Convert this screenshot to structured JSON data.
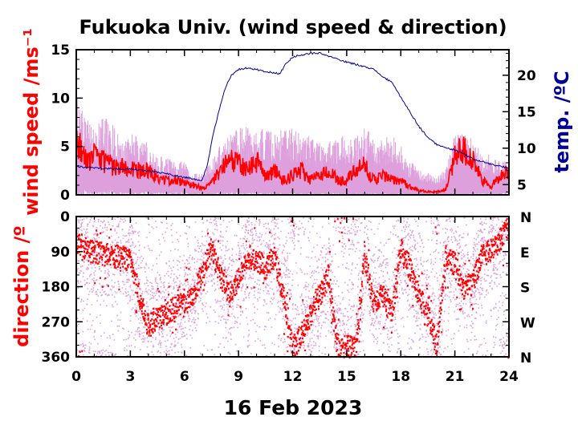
{
  "chart_data": [
    {
      "type": "line",
      "title": "Fukuoka Univ. (wind speed & direction)",
      "xlabel": "",
      "xlim": [
        0,
        24
      ],
      "xticks": [
        0,
        3,
        6,
        9,
        12,
        15,
        18,
        21,
        24
      ],
      "ylabel": "wind speed /ms⁻¹",
      "ylim": [
        0,
        15
      ],
      "yticks": [
        0,
        5,
        10,
        15
      ],
      "y2label": "temp. /ºC",
      "y2lim": [
        3.6,
        23.5
      ],
      "y2ticks": [
        5,
        10,
        15,
        20
      ],
      "series": [
        {
          "role": "wind-speed-max",
          "color": "#dda0dd",
          "x": [
            0,
            0.5,
            1,
            1.5,
            2,
            2.5,
            3,
            3.5,
            4,
            4.5,
            5,
            5.5,
            6,
            6.5,
            7,
            7.5,
            8,
            8.5,
            9,
            9.5,
            10,
            10.5,
            11,
            11.5,
            12,
            12.5,
            13,
            13.5,
            14,
            14.5,
            15,
            15.5,
            16,
            16.5,
            17,
            17.5,
            18,
            18.5,
            19,
            19.5,
            20,
            20.5,
            21,
            21.5,
            22,
            22.5,
            23,
            23.5,
            24
          ],
          "y": [
            9,
            7,
            6,
            7,
            6.5,
            5,
            6,
            5,
            5,
            3.5,
            3.5,
            3,
            3,
            2,
            2,
            3,
            4.5,
            5.5,
            6,
            6.5,
            6,
            6,
            5.5,
            6,
            6,
            5.5,
            5.5,
            5,
            5,
            5,
            6,
            5.5,
            6,
            5.5,
            5,
            5.5,
            4.5,
            3,
            2.5,
            2,
            1.5,
            2.5,
            5.5,
            5.5,
            5,
            4,
            3.5,
            3,
            3
          ]
        },
        {
          "role": "wind-speed-min",
          "color": "#dda0dd",
          "x": [
            0,
            0.5,
            1,
            1.5,
            2,
            2.5,
            3,
            3.5,
            4,
            4.5,
            5,
            5.5,
            6,
            6.5,
            7,
            7.5,
            8,
            8.5,
            9,
            9.5,
            10,
            10.5,
            11,
            11.5,
            12,
            12.5,
            13,
            13.5,
            14,
            14.5,
            15,
            15.5,
            16,
            16.5,
            17,
            17.5,
            18,
            18.5,
            19,
            19.5,
            20,
            20.5,
            21,
            21.5,
            22,
            22.5,
            23,
            23.5,
            24
          ],
          "y": [
            0.5,
            0.5,
            0.3,
            0.5,
            0.5,
            0.3,
            0.3,
            0.3,
            0.3,
            0.3,
            0.3,
            0.3,
            0.3,
            0.2,
            0.2,
            0.2,
            0.3,
            0.3,
            0.3,
            0.3,
            0.3,
            0.2,
            0.2,
            0.2,
            0.2,
            0.2,
            0.2,
            0.2,
            0.2,
            0.2,
            0.2,
            0.2,
            0.2,
            0.2,
            0.2,
            0.2,
            0.2,
            0.1,
            0.1,
            0.1,
            0.1,
            0.1,
            0.2,
            0.2,
            0.2,
            0.2,
            0.2,
            0.2,
            0.3
          ]
        },
        {
          "role": "wind-speed-mean",
          "color": "#ff0000",
          "x": [
            0,
            0.3,
            0.6,
            1,
            1.5,
            2,
            2.5,
            3,
            3.5,
            4,
            4.5,
            5,
            5.5,
            6,
            6.5,
            7,
            7.5,
            8,
            8.5,
            9,
            9.5,
            10,
            10.5,
            11,
            11.5,
            12,
            12.5,
            13,
            13.5,
            14,
            14.5,
            15,
            15.5,
            16,
            16.5,
            17,
            17.5,
            18,
            18.5,
            19,
            19.5,
            20,
            20.5,
            21,
            21.3,
            21.6,
            22,
            22.5,
            23,
            23.5,
            24
          ],
          "y": [
            5.5,
            4.5,
            3.5,
            4,
            3.5,
            3,
            2.8,
            3,
            2.5,
            2.5,
            1.8,
            1.5,
            1.5,
            1.2,
            1.0,
            0.8,
            1.2,
            2.5,
            3.5,
            3.5,
            2.5,
            3.5,
            1.8,
            2.5,
            1.5,
            2,
            2.5,
            1.5,
            2,
            2.5,
            1.5,
            1.5,
            2.5,
            3,
            1.5,
            2,
            1.5,
            1.5,
            0.8,
            0.5,
            0.3,
            0.3,
            0.5,
            4,
            5,
            4.5,
            3.5,
            1.5,
            0.8,
            2,
            2.5
          ]
        },
        {
          "role": "temperature",
          "name": "",
          "color": "#000099",
          "axis": "y2",
          "x": [
            0,
            1,
            2,
            3,
            4,
            5,
            6,
            6.5,
            7,
            7.3,
            7.6,
            8,
            8.3,
            8.6,
            9,
            9.5,
            10,
            10.5,
            11,
            11.3,
            11.6,
            12,
            12.5,
            13,
            13.5,
            14,
            14.5,
            15,
            15.5,
            16,
            16.5,
            17,
            17.5,
            18,
            18.5,
            19,
            19.5,
            20,
            20.5,
            21,
            21.5,
            22,
            22.5,
            23,
            23.5,
            24
          ],
          "y": [
            7.5,
            7.3,
            7.2,
            7.1,
            6.9,
            6.5,
            6.0,
            5.8,
            5.6,
            8,
            12,
            16,
            18.5,
            20,
            20.8,
            21,
            20.8,
            20.5,
            20.3,
            20.2,
            21.5,
            22.5,
            22.8,
            23,
            23,
            22.6,
            22.2,
            21.8,
            21.5,
            21.2,
            20.8,
            19.8,
            19,
            17,
            15,
            13,
            11.5,
            10.5,
            10,
            9.8,
            9.2,
            8.5,
            8.2,
            7.8,
            7.5,
            7.3
          ]
        }
      ]
    },
    {
      "type": "scatter",
      "xlim": [
        0,
        24
      ],
      "xticks": [
        0,
        3,
        6,
        9,
        12,
        15,
        18,
        21,
        24
      ],
      "ylabel": "direction /º",
      "ylim": [
        0,
        360
      ],
      "yinvert": true,
      "yticks": [
        0,
        90,
        180,
        270,
        360
      ],
      "y2ticklabels": [
        "N",
        "E",
        "S",
        "W",
        "N"
      ],
      "series": [
        {
          "role": "direction-mean",
          "color": "#ff0000",
          "x": [
            0,
            0.5,
            1,
            1.5,
            2,
            2.5,
            3,
            3.5,
            4,
            4.5,
            5,
            5.5,
            6,
            6.5,
            7,
            7.5,
            8,
            8.5,
            9,
            9.5,
            10,
            10.5,
            11,
            11.5,
            12,
            12.5,
            13,
            13.5,
            14,
            14.5,
            15,
            15.5,
            16,
            16.5,
            17,
            17.5,
            18,
            18.5,
            19,
            19.5,
            20,
            20.5,
            21,
            21.5,
            22,
            22.5,
            23,
            23.5,
            24
          ],
          "y": [
            60,
            80,
            90,
            95,
            100,
            100,
            110,
            200,
            280,
            260,
            250,
            230,
            220,
            200,
            140,
            80,
            150,
            200,
            160,
            100,
            110,
            130,
            100,
            200,
            340,
            300,
            250,
            200,
            150,
            340,
            330,
            340,
            100,
            220,
            200,
            250,
            80,
            130,
            200,
            250,
            330,
            100,
            120,
            180,
            170,
            100,
            80,
            60,
            20
          ]
        }
      ]
    }
  ],
  "date_label": "16 Feb 2023"
}
